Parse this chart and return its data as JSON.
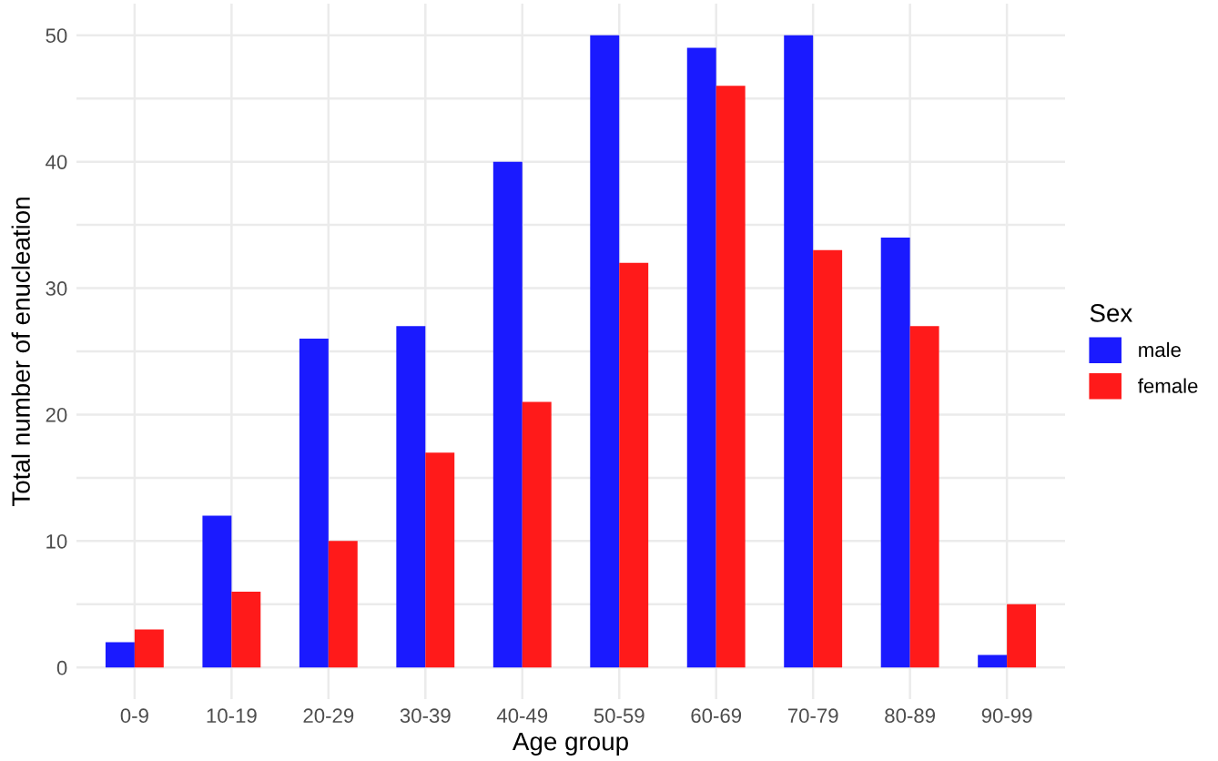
{
  "chart_data": {
    "type": "bar",
    "xlabel": "Age group",
    "ylabel": "Total number of enucleation",
    "legend_title": "Sex",
    "categories": [
      "0-9",
      "10-19",
      "20-29",
      "30-39",
      "40-49",
      "50-59",
      "60-69",
      "70-79",
      "80-89",
      "90-99"
    ],
    "series": [
      {
        "name": "male",
        "color": "#1a1aff",
        "values": [
          2,
          12,
          26,
          27,
          40,
          50,
          49,
          50,
          34,
          1
        ]
      },
      {
        "name": "female",
        "color": "#ff1a1a",
        "values": [
          3,
          6,
          10,
          17,
          21,
          32,
          46,
          33,
          27,
          5
        ]
      }
    ],
    "ylim": [
      -2.5,
      52.5
    ],
    "yticks": [
      0,
      {
        "value": 5,
        "label": null
      },
      10,
      {
        "value": 15,
        "label": null
      },
      20,
      {
        "value": 25,
        "label": null
      },
      30,
      {
        "value": 35,
        "label": null
      },
      40,
      {
        "value": 45,
        "label": null
      },
      50
    ],
    "grid": true,
    "legend": "right"
  }
}
